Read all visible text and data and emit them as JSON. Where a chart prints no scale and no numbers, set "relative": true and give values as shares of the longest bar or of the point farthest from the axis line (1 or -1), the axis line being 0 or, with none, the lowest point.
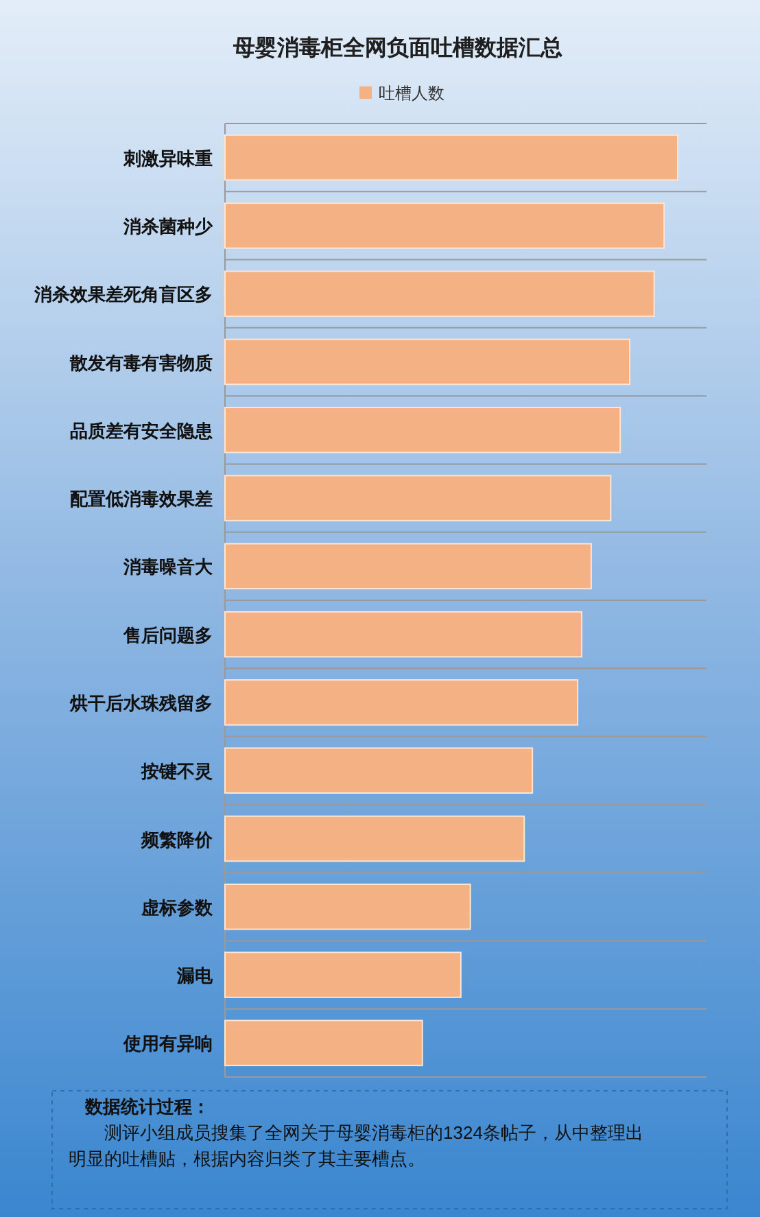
{
  "chart_data": {
    "type": "bar",
    "orientation": "horizontal",
    "relative": true,
    "title": "母婴消毒柜全网负面吐槽数据汇总",
    "categories": [
      "刺激异味重",
      "消杀菌种少",
      "消杀效果差死角盲区多",
      "散发有毒有害物质",
      "品质差有安全隐患",
      "配置低消毒效果差",
      "消毒噪音大",
      "售后问题多",
      "烘干后水珠残留多",
      "按键不灵",
      "频繁降价",
      "虚标参数",
      "漏电",
      "使用有异响"
    ],
    "series": [
      {
        "name": "吐槽人数",
        "color": "#f4b183",
        "values": [
          1,
          0.97,
          0.948,
          0.894,
          0.873,
          0.852,
          0.809,
          0.788,
          0.779,
          0.679,
          0.661,
          0.542,
          0.521,
          0.436
        ]
      }
    ],
    "legend": "top",
    "grid": "y",
    "annotations": [
      "数据统计过程：",
      "测评小组成员搜集了全网关于母婴消毒柜的1324条帖子，从中整理出明显的吐槽贴，根据内容归类了其主要槽点。"
    ]
  }
}
